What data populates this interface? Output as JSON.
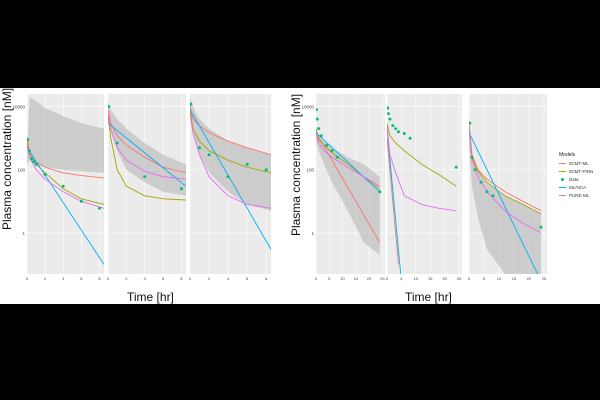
{
  "chart_data": [
    {
      "type": "line",
      "figure": "left",
      "ylabel": "Plasma concentration [nM]",
      "xlabel": "Time [hr]",
      "yscale": "log",
      "ylim": [
        0.05,
        25000
      ],
      "yticks": [
        {
          "value": 1,
          "label": "1"
        },
        {
          "value": 100,
          "label": "100"
        },
        {
          "value": 10000,
          "label": "10000"
        }
      ],
      "panels": [
        {
          "xlim": [
            0,
            8.5
          ],
          "xticks": [
            0,
            2,
            4,
            6,
            8
          ],
          "ribbon": {
            "x": [
              0,
              0.3,
              1,
              2,
              4,
              6,
              8.5
            ],
            "upper": [
              300,
              20000,
              15000,
              9000,
              5000,
              3000,
              2000
            ],
            "lower": [
              150,
              200,
              150,
              120,
              100,
              90,
              80
            ]
          },
          "series": [
            {
              "name": "3CMT-ML",
              "color": "#F8766D",
              "x": [
                0,
                0.3,
                1,
                2,
                4,
                6,
                8.5
              ],
              "y": [
                1000,
                350,
                180,
                120,
                80,
                65,
                55
              ]
            },
            {
              "name": "3CMT-PINN",
              "color": "#A3A500",
              "x": [
                0,
                0.3,
                1,
                2,
                4,
                6,
                8.5
              ],
              "y": [
                800,
                300,
                150,
                80,
                25,
                12,
                8
              ]
            },
            {
              "name": "ML/NCA",
              "color": "#00B0F6",
              "x": [
                0,
                8.5
              ],
              "y": [
                500,
                0.1
              ]
            },
            {
              "name": "PURE-ML",
              "color": "#E76BF3",
              "x": [
                0,
                0.3,
                1,
                2,
                4,
                6,
                8.5
              ],
              "y": [
                600,
                250,
                100,
                50,
                20,
                10,
                6
              ]
            }
          ],
          "data_points": {
            "name": "Data",
            "color": "#00BF7D",
            "x": [
              0.1,
              0.25,
              0.5,
              0.75,
              1,
              2,
              4,
              6,
              8
            ],
            "y": [
              900,
              400,
              220,
              180,
              150,
              70,
              30,
              10,
              6
            ]
          }
        },
        {
          "xlim": [
            0,
            8.5
          ],
          "xticks": [
            0,
            2,
            4,
            6,
            8
          ],
          "ribbon": {
            "x": [
              0,
              0.3,
              1,
              2,
              4,
              6,
              8.5
            ],
            "upper": [
              15000,
              8000,
              4000,
              2000,
              700,
              300,
              150
            ],
            "lower": [
              5000,
              1500,
              400,
              100,
              40,
              20,
              15
            ]
          },
          "series": [
            {
              "name": "3CMT-ML",
              "color": "#F8766D",
              "x": [
                0,
                0.3,
                1,
                2,
                4,
                6,
                8.5
              ],
              "y": [
                8000,
                3000,
                1200,
                600,
                250,
                120,
                80
              ]
            },
            {
              "name": "3CMT-PINN",
              "color": "#A3A500",
              "x": [
                0,
                0.3,
                1,
                2,
                4,
                6,
                8.5
              ],
              "y": [
                5000,
                1000,
                100,
                30,
                15,
                12,
                11
              ]
            },
            {
              "name": "ML/NCA",
              "color": "#00B0F6",
              "x": [
                0,
                8.5
              ],
              "y": [
                3000,
                30
              ]
            },
            {
              "name": "PURE-ML",
              "color": "#E76BF3",
              "x": [
                0,
                0.3,
                1,
                2,
                4,
                6,
                8.5
              ],
              "y": [
                6000,
                2000,
                500,
                200,
                90,
                60,
                50
              ]
            }
          ],
          "data_points": {
            "name": "Data",
            "color": "#00BF7D",
            "x": [
              0.1,
              1,
              4,
              8
            ],
            "y": [
              10000,
              700,
              60,
              25
            ]
          }
        },
        {
          "xlim": [
            0,
            8.5
          ],
          "xticks": [
            0,
            2,
            4,
            6,
            8
          ],
          "ribbon": {
            "x": [
              0,
              0.3,
              1,
              2,
              4,
              6,
              8.5
            ],
            "upper": [
              20000,
              10000,
              4000,
              2000,
              800,
              500,
              300
            ],
            "lower": [
              5000,
              1500,
              300,
              80,
              20,
              8,
              5
            ]
          },
          "series": [
            {
              "name": "3CMT-ML",
              "color": "#F8766D",
              "x": [
                0,
                0.3,
                1,
                2,
                4,
                6,
                8.5
              ],
              "y": [
                10000,
                4000,
                2500,
                1500,
                800,
                500,
                300
              ]
            },
            {
              "name": "3CMT-PINN",
              "color": "#A3A500",
              "x": [
                0,
                0.3,
                1,
                2,
                4,
                6,
                8.5
              ],
              "y": [
                8000,
                2000,
                800,
                400,
                200,
                120,
                80
              ]
            },
            {
              "name": "ML/NCA",
              "color": "#00B0F6",
              "x": [
                0,
                8.5
              ],
              "y": [
                8000,
                0.3
              ]
            },
            {
              "name": "PURE-ML",
              "color": "#E76BF3",
              "x": [
                0,
                0.3,
                1,
                2,
                4,
                6,
                8.5
              ],
              "y": [
                6000,
                1500,
                300,
                60,
                15,
                8,
                6
              ]
            }
          ],
          "data_points": {
            "name": "Data",
            "color": "#00BF7D",
            "x": [
              0.1,
              1,
              2,
              4,
              6,
              8
            ],
            "y": [
              12000,
              500,
              300,
              60,
              150,
              100
            ]
          }
        }
      ]
    },
    {
      "type": "line",
      "figure": "right",
      "ylabel": "Plasma concentration [nM]",
      "xlabel": "Time [hr]",
      "yscale": "log",
      "ylim": [
        0.05,
        25000
      ],
      "yticks": [
        {
          "value": 1,
          "label": "1"
        },
        {
          "value": 100,
          "label": "100"
        },
        {
          "value": 10000,
          "label": "10000"
        }
      ],
      "legend": {
        "title": "Models",
        "placement": "right"
      },
      "panels": [
        {
          "xlim": [
            0,
            26
          ],
          "xticks": [
            0,
            5,
            10,
            15,
            20,
            25
          ],
          "ribbon": {
            "x": [
              0,
              1,
              3,
              6,
              12,
              18,
              24
            ],
            "upper": [
              2000,
              1200,
              800,
              500,
              250,
              150,
              60
            ],
            "lower": [
              800,
              400,
              150,
              40,
              5,
              0.5,
              0.2
            ]
          },
          "series": [
            {
              "name": "3CMT-ML",
              "color": "#F8766D",
              "x": [
                0,
                24
              ],
              "y": [
                1500,
                0.5
              ]
            },
            {
              "name": "3CMT-PINN",
              "color": "#A3A500",
              "x": [
                0,
                1,
                3,
                6,
                12,
                18,
                24
              ],
              "y": [
                2000,
                900,
                600,
                350,
                150,
                60,
                25
              ]
            },
            {
              "name": "ML/NCA",
              "color": "#00B0F6",
              "x": [
                0,
                24
              ],
              "y": [
                1500,
                20
              ]
            },
            {
              "name": "PURE-ML",
              "color": "#E76BF3",
              "x": [
                0,
                1,
                3,
                6,
                12,
                18,
                24
              ],
              "y": [
                1500,
                700,
                400,
                250,
                120,
                60,
                30
              ]
            }
          ],
          "data_points": {
            "name": "Data",
            "color": "#00BF7D",
            "x": [
              0.1,
              0.5,
              1,
              2,
              4,
              6,
              8,
              24
            ],
            "y": [
              8000,
              4000,
              2000,
              1200,
              600,
              400,
              250,
              20
            ]
          }
        },
        {
          "xlim": [
            0,
            26
          ],
          "xticks": [
            0,
            5,
            10,
            15,
            20,
            25
          ],
          "ribbon": null,
          "series": [
            {
              "name": "3CMT-ML",
              "color": "#F8766D",
              "x": [
                0,
                4
              ],
              "y": [
                1000,
                0.1
              ]
            },
            {
              "name": "3CMT-PINN",
              "color": "#A3A500",
              "x": [
                0,
                1,
                3,
                6,
                12,
                18,
                24
              ],
              "y": [
                3000,
                1200,
                700,
                400,
                150,
                70,
                30
              ]
            },
            {
              "name": "ML/NCA",
              "color": "#00B0F6",
              "x": [
                0,
                5
              ],
              "y": [
                2000,
                0.03
              ]
            },
            {
              "name": "PURE-ML",
              "color": "#E76BF3",
              "x": [
                0,
                1,
                3,
                6,
                12,
                18,
                24
              ],
              "y": [
                2500,
                300,
                80,
                15,
                8,
                6,
                5
              ]
            }
          ],
          "data_points": {
            "name": "Data",
            "color": "#00BF7D",
            "x": [
              0.25,
              0.5,
              1,
              2,
              3,
              4,
              6,
              8,
              24
            ],
            "y": [
              9000,
              6000,
              4000,
              2500,
              2000,
              1600,
              1400,
              1000,
              120
            ]
          }
        },
        {
          "xlim": [
            0,
            26
          ],
          "xticks": [
            0,
            5,
            10,
            15,
            20,
            25
          ],
          "ribbon": {
            "x": [
              0,
              1,
              3,
              6,
              12,
              18,
              24
            ],
            "upper": [
              2000,
              300,
              100,
              40,
              15,
              8,
              4
            ],
            "lower": [
              500,
              30,
              3,
              0.3,
              0.05,
              0.03,
              0.03
            ]
          },
          "series": [
            {
              "name": "3CMT-ML",
              "color": "#F8766D",
              "x": [
                0,
                1,
                3,
                6,
                12,
                18,
                24
              ],
              "y": [
                3000,
                300,
                100,
                50,
                20,
                10,
                5
              ]
            },
            {
              "name": "3CMT-PINN",
              "color": "#A3A500",
              "x": [
                0,
                1,
                3,
                6,
                12,
                18,
                24
              ],
              "y": [
                2500,
                250,
                90,
                40,
                15,
                8,
                4
              ]
            },
            {
              "name": "ML/NCA",
              "color": "#00B0F6",
              "x": [
                0,
                24
              ],
              "y": [
                1500,
                0.03
              ]
            },
            {
              "name": "PURE-ML",
              "color": "#E76BF3",
              "x": [
                0,
                1,
                3,
                6,
                12,
                18,
                24
              ],
              "y": [
                2000,
                200,
                60,
                20,
                5,
                2,
                1
              ]
            }
          ],
          "data_points": {
            "name": "Data",
            "color": "#00BF7D",
            "x": [
              0.25,
              1,
              2,
              4,
              6,
              8,
              24
            ],
            "y": [
              3000,
              250,
              100,
              40,
              20,
              15,
              1.5
            ]
          }
        }
      ]
    }
  ],
  "legend": {
    "title": "Models",
    "items": [
      {
        "label": "3CMT-ML",
        "color": "#F8766D",
        "kind": "line"
      },
      {
        "label": "3CMT-PINN",
        "color": "#A3A500",
        "kind": "line"
      },
      {
        "label": "Data",
        "color": "#00BF7D",
        "kind": "point"
      },
      {
        "label": "ML/NCA",
        "color": "#00B0F6",
        "kind": "line"
      },
      {
        "label": "PURE-ML",
        "color": "#E76BF3",
        "kind": "line"
      }
    ]
  }
}
